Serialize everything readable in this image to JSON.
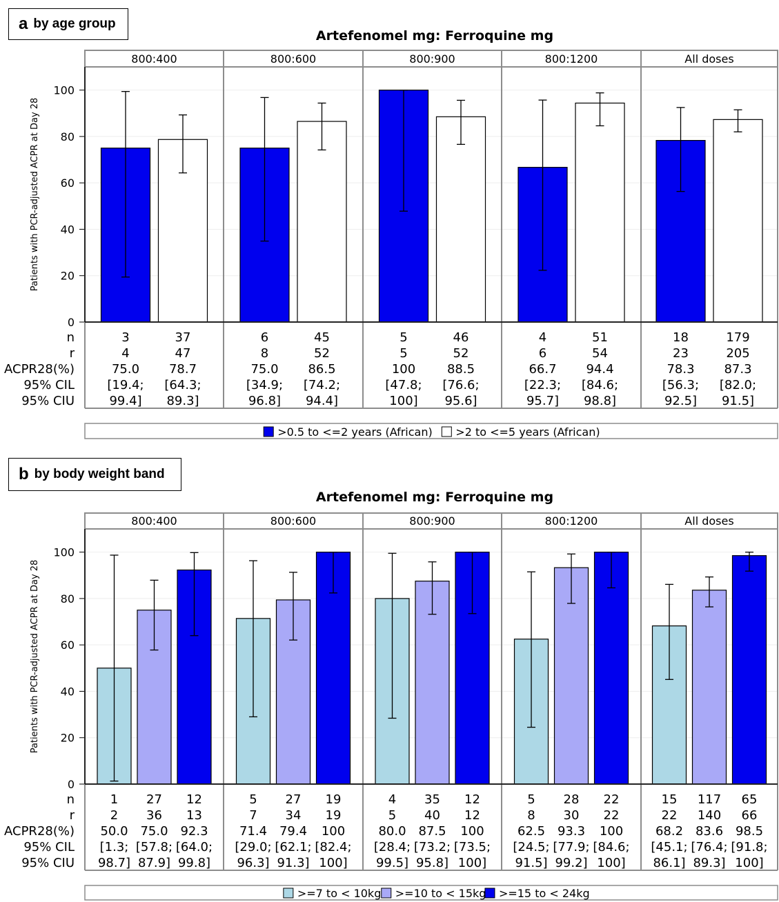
{
  "panel_a_label": {
    "letter": "a",
    "text": "by age group"
  },
  "panel_b_label": {
    "letter": "b",
    "text": "by body weight band"
  },
  "colors": {
    "dark_blue": "#0000ee",
    "white": "#ffffff",
    "light_blue": "#add8e6",
    "lavender": "#a9a9f7",
    "frame": "#8c8c8c"
  },
  "chart_data": [
    {
      "type": "bar",
      "title": "Artefenomel mg: Ferroquine mg",
      "ylabel": "Patients with PCR-adjusted ACPR at Day 28",
      "ylim": [
        0,
        110
      ],
      "yticks": [
        "0",
        "20",
        "40",
        "60",
        "80",
        "100"
      ],
      "panels": [
        "800:400",
        "800:600",
        "800:900",
        "800:1200",
        "All doses"
      ],
      "row_labels": [
        "n",
        "r",
        "ACPR28(%)",
        "95% CIL",
        "95% CIU"
      ],
      "legend": [
        {
          "name": ">0.5 to <=2 years (African)",
          "color": "#0000ee"
        },
        {
          "name": ">2 to <=5 years (African)",
          "color": "#ffffff"
        }
      ],
      "series": [
        {
          "name": ">0.5 to <=2 years (African)",
          "color": "#0000ee",
          "values": [
            75.0,
            75.0,
            100,
            66.7,
            78.3
          ],
          "ci_low": [
            19.4,
            34.9,
            47.8,
            22.3,
            56.3
          ],
          "ci_high": [
            99.4,
            96.8,
            100,
            95.7,
            92.5
          ],
          "rows": [
            [
              "3",
              "4",
              "75.0",
              "[19.4;",
              "99.4]"
            ],
            [
              "6",
              "8",
              "75.0",
              "[34.9;",
              "96.8]"
            ],
            [
              "5",
              "5",
              "100",
              "[47.8;",
              "100]"
            ],
            [
              "4",
              "6",
              "66.7",
              "[22.3;",
              "95.7]"
            ],
            [
              "18",
              "23",
              "78.3",
              "[56.3;",
              "92.5]"
            ]
          ]
        },
        {
          "name": ">2 to <=5 years (African)",
          "color": "#ffffff",
          "values": [
            78.7,
            86.5,
            88.5,
            94.4,
            87.3
          ],
          "ci_low": [
            64.3,
            74.2,
            76.6,
            84.6,
            82.0
          ],
          "ci_high": [
            89.3,
            94.4,
            95.6,
            98.8,
            91.5
          ],
          "rows": [
            [
              "37",
              "47",
              "78.7",
              "[64.3;",
              "89.3]"
            ],
            [
              "45",
              "52",
              "86.5",
              "[74.2;",
              "94.4]"
            ],
            [
              "46",
              "52",
              "88.5",
              "[76.6;",
              "95.6]"
            ],
            [
              "51",
              "54",
              "94.4",
              "[84.6;",
              "98.8]"
            ],
            [
              "179",
              "205",
              "87.3",
              "[82.0;",
              "91.5]"
            ]
          ]
        }
      ]
    },
    {
      "type": "bar",
      "title": "Artefenomel mg: Ferroquine mg",
      "ylabel": "Patients with PCR-adjusted ACPR at Day 28",
      "ylim": [
        0,
        110
      ],
      "yticks": [
        "0",
        "20",
        "40",
        "60",
        "80",
        "100"
      ],
      "panels": [
        "800:400",
        "800:600",
        "800:900",
        "800:1200",
        "All doses"
      ],
      "row_labels": [
        "n",
        "r",
        "ACPR28(%)",
        "95% CIL",
        "95% CIU"
      ],
      "legend": [
        {
          "name": ">=7 to < 10kg",
          "color": "#add8e6"
        },
        {
          "name": ">=10 to < 15kg",
          "color": "#a9a9f7"
        },
        {
          "name": ">=15 to < 24kg",
          "color": "#0000ee"
        }
      ],
      "series": [
        {
          "name": ">=7 to < 10kg",
          "color": "#add8e6",
          "values": [
            50.0,
            71.4,
            80.0,
            62.5,
            68.2
          ],
          "ci_low": [
            1.3,
            29.0,
            28.4,
            24.5,
            45.1
          ],
          "ci_high": [
            98.7,
            96.3,
            99.5,
            91.5,
            86.1
          ],
          "rows": [
            [
              "1",
              "2",
              "50.0",
              "[1.3;",
              "98.7]"
            ],
            [
              "5",
              "7",
              "71.4",
              "[29.0;",
              "96.3]"
            ],
            [
              "4",
              "5",
              "80.0",
              "[28.4;",
              "99.5]"
            ],
            [
              "5",
              "8",
              "62.5",
              "[24.5;",
              "91.5]"
            ],
            [
              "15",
              "22",
              "68.2",
              "[45.1;",
              "86.1]"
            ]
          ]
        },
        {
          "name": ">=10 to < 15kg",
          "color": "#a9a9f7",
          "values": [
            75.0,
            79.4,
            87.5,
            93.3,
            83.6
          ],
          "ci_low": [
            57.8,
            62.1,
            73.2,
            77.9,
            76.4
          ],
          "ci_high": [
            87.9,
            91.3,
            95.8,
            99.2,
            89.3
          ],
          "rows": [
            [
              "27",
              "36",
              "75.0",
              "[57.8;",
              "87.9]"
            ],
            [
              "27",
              "34",
              "79.4",
              "[62.1;",
              "91.3]"
            ],
            [
              "35",
              "40",
              "87.5",
              "[73.2;",
              "95.8]"
            ],
            [
              "28",
              "30",
              "93.3",
              "[77.9;",
              "99.2]"
            ],
            [
              "117",
              "140",
              "83.6",
              "[76.4;",
              "89.3]"
            ]
          ]
        },
        {
          "name": ">=15 to < 24kg",
          "color": "#0000ee",
          "values": [
            92.3,
            100,
            100,
            100,
            98.5
          ],
          "ci_low": [
            64.0,
            82.4,
            73.5,
            84.6,
            91.8
          ],
          "ci_high": [
            99.8,
            100,
            100,
            100,
            100
          ],
          "rows": [
            [
              "12",
              "13",
              "92.3",
              "[64.0;",
              "99.8]"
            ],
            [
              "19",
              "19",
              "100",
              "[82.4;",
              "100]"
            ],
            [
              "12",
              "12",
              "100",
              "[73.5;",
              "100]"
            ],
            [
              "22",
              "22",
              "100",
              "[84.6;",
              "100]"
            ],
            [
              "65",
              "66",
              "98.5",
              "[91.8;",
              "100]"
            ]
          ]
        }
      ]
    }
  ]
}
